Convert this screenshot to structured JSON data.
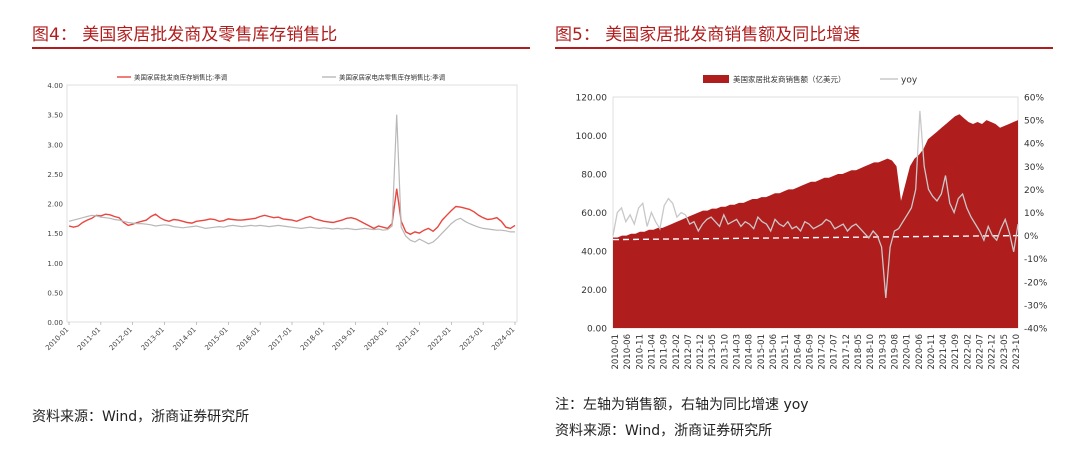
{
  "left": {
    "title": "图4：  美国家居批发商及零售库存销售比",
    "source": "资料来源：Wind，浙商证券研究所",
    "colors": {
      "wholesale": "#e8463f",
      "retail": "#b8b8b8"
    },
    "chart_data": {
      "type": "line",
      "ylim": [
        0,
        4
      ],
      "y_ticks": [
        "0.00",
        "0.50",
        "1.00",
        "1.50",
        "2.00",
        "2.50",
        "3.00",
        "3.50",
        "4.00"
      ],
      "x_ticks": [
        "2010-01",
        "2011-01",
        "2012-01",
        "2013-01",
        "2014-01",
        "2015-01",
        "2016-01",
        "2017-01",
        "2018-01",
        "2019-01",
        "2020-01",
        "2021-01",
        "2022-01",
        "2023-01",
        "2024-01"
      ],
      "legend_placement": "top",
      "series": [
        {
          "name": "美国家居批发商库存销售比:季调",
          "values": [
            1.62,
            1.6,
            1.62,
            1.68,
            1.72,
            1.75,
            1.8,
            1.79,
            1.82,
            1.81,
            1.78,
            1.76,
            1.68,
            1.63,
            1.65,
            1.68,
            1.7,
            1.72,
            1.78,
            1.82,
            1.76,
            1.72,
            1.7,
            1.73,
            1.72,
            1.7,
            1.68,
            1.67,
            1.7,
            1.71,
            1.72,
            1.74,
            1.73,
            1.7,
            1.71,
            1.74,
            1.73,
            1.72,
            1.72,
            1.73,
            1.74,
            1.75,
            1.78,
            1.8,
            1.78,
            1.76,
            1.77,
            1.74,
            1.73,
            1.72,
            1.7,
            1.73,
            1.76,
            1.78,
            1.74,
            1.72,
            1.7,
            1.69,
            1.68,
            1.7,
            1.72,
            1.75,
            1.76,
            1.74,
            1.7,
            1.66,
            1.62,
            1.58,
            1.62,
            1.6,
            1.58,
            1.66,
            2.25,
            1.7,
            1.52,
            1.48,
            1.52,
            1.5,
            1.55,
            1.58,
            1.53,
            1.6,
            1.72,
            1.8,
            1.88,
            1.95,
            1.94,
            1.92,
            1.9,
            1.86,
            1.8,
            1.76,
            1.73,
            1.74,
            1.76,
            1.7,
            1.6,
            1.58,
            1.63
          ]
        },
        {
          "name": "美国家居家电店零售库存销售比:季调",
          "values": [
            1.7,
            1.72,
            1.74,
            1.76,
            1.78,
            1.8,
            1.79,
            1.77,
            1.76,
            1.75,
            1.73,
            1.72,
            1.7,
            1.68,
            1.67,
            1.66,
            1.66,
            1.65,
            1.64,
            1.62,
            1.63,
            1.64,
            1.63,
            1.61,
            1.6,
            1.59,
            1.6,
            1.61,
            1.62,
            1.6,
            1.58,
            1.59,
            1.6,
            1.61,
            1.6,
            1.62,
            1.63,
            1.62,
            1.61,
            1.62,
            1.63,
            1.62,
            1.63,
            1.62,
            1.61,
            1.62,
            1.63,
            1.62,
            1.61,
            1.6,
            1.59,
            1.58,
            1.59,
            1.6,
            1.59,
            1.58,
            1.59,
            1.58,
            1.57,
            1.58,
            1.57,
            1.58,
            1.57,
            1.56,
            1.57,
            1.58,
            1.57,
            1.56,
            1.57,
            1.55,
            1.56,
            1.62,
            3.5,
            1.6,
            1.45,
            1.38,
            1.35,
            1.4,
            1.36,
            1.32,
            1.35,
            1.42,
            1.5,
            1.58,
            1.66,
            1.72,
            1.75,
            1.7,
            1.66,
            1.63,
            1.6,
            1.58,
            1.57,
            1.56,
            1.55,
            1.55,
            1.54,
            1.52,
            1.52
          ]
        }
      ]
    }
  },
  "right": {
    "title": "图5：  美国家居批发商销售额及同比增速",
    "note": "注：左轴为销售额，右轴为同比增速 yoy",
    "source": "资料来源：Wind，浙商证券研究所",
    "colors": {
      "sales": "#b01d1d",
      "yoy": "#c8c8c8",
      "zero": "#ffffff"
    },
    "chart_data": {
      "type": "area",
      "ylim": [
        0,
        120
      ],
      "y2lim": [
        -0.4,
        0.6
      ],
      "y_ticks": [
        "0.00",
        "20.00",
        "40.00",
        "60.00",
        "80.00",
        "100.00",
        "120.00"
      ],
      "y2_ticks": [
        "-40%",
        "-30%",
        "-20%",
        "-10%",
        "0%",
        "10%",
        "20%",
        "30%",
        "40%",
        "50%",
        "60%"
      ],
      "x_ticks": [
        "2010-01",
        "2010-06",
        "2010-11",
        "2011-04",
        "2011-09",
        "2012-02",
        "2012-07",
        "2012-12",
        "2013-05",
        "2013-10",
        "2014-03",
        "2014-08",
        "2015-01",
        "2015-06",
        "2015-11",
        "2016-04",
        "2016-09",
        "2017-02",
        "2017-07",
        "2017-12",
        "2018-05",
        "2018-10",
        "2019-03",
        "2019-08",
        "2020-01",
        "2020-06",
        "2020-11",
        "2021-04",
        "2021-09",
        "2022-02",
        "2022-07",
        "2022-12",
        "2023-05",
        "2023-10"
      ],
      "legend_placement": "top",
      "series": [
        {
          "name": "美国家居批发商销售额（亿美元）",
          "axis": "left",
          "values": [
            47,
            47,
            48,
            48,
            49,
            49,
            50,
            50,
            51,
            51,
            52,
            52,
            53,
            54,
            55,
            56,
            57,
            58,
            59,
            60,
            61,
            61,
            62,
            62,
            63,
            63,
            64,
            64,
            65,
            65,
            66,
            67,
            67,
            68,
            68,
            69,
            70,
            70,
            71,
            72,
            72,
            73,
            74,
            75,
            76,
            76,
            77,
            78,
            78,
            79,
            80,
            80,
            81,
            82,
            82,
            83,
            84,
            85,
            86,
            86,
            87,
            88,
            87,
            84,
            66,
            75,
            84,
            88,
            90,
            93,
            98,
            100,
            102,
            104,
            106,
            108,
            110,
            111,
            109,
            107,
            106,
            107,
            106,
            108,
            107,
            106,
            104,
            105,
            106,
            107,
            108
          ]
        },
        {
          "name": "yoy",
          "axis": "right",
          "values": [
            0.0,
            0.1,
            0.12,
            0.06,
            0.09,
            0.05,
            0.12,
            0.14,
            0.04,
            0.1,
            0.06,
            0.03,
            0.13,
            0.16,
            0.14,
            0.08,
            0.1,
            0.09,
            0.05,
            0.06,
            0.02,
            0.05,
            0.07,
            0.08,
            0.06,
            0.04,
            0.09,
            0.05,
            0.06,
            0.07,
            0.04,
            0.06,
            0.05,
            0.03,
            0.08,
            0.06,
            0.05,
            0.02,
            0.07,
            0.05,
            0.04,
            0.06,
            0.03,
            0.04,
            0.02,
            0.06,
            0.05,
            0.03,
            0.04,
            0.05,
            0.07,
            0.06,
            0.03,
            0.04,
            0.05,
            0.02,
            0.04,
            0.05,
            0.03,
            0.01,
            -0.01,
            0.02,
            0.0,
            -0.05,
            -0.27,
            -0.05,
            0.02,
            0.03,
            0.06,
            0.09,
            0.12,
            0.2,
            0.54,
            0.3,
            0.2,
            0.17,
            0.15,
            0.18,
            0.26,
            0.14,
            0.1,
            0.16,
            0.18,
            0.12,
            0.08,
            0.05,
            0.02,
            -0.02,
            0.04,
            0.0,
            -0.02,
            0.03,
            0.07,
            0.01,
            -0.07,
            0.05
          ]
        }
      ]
    }
  }
}
